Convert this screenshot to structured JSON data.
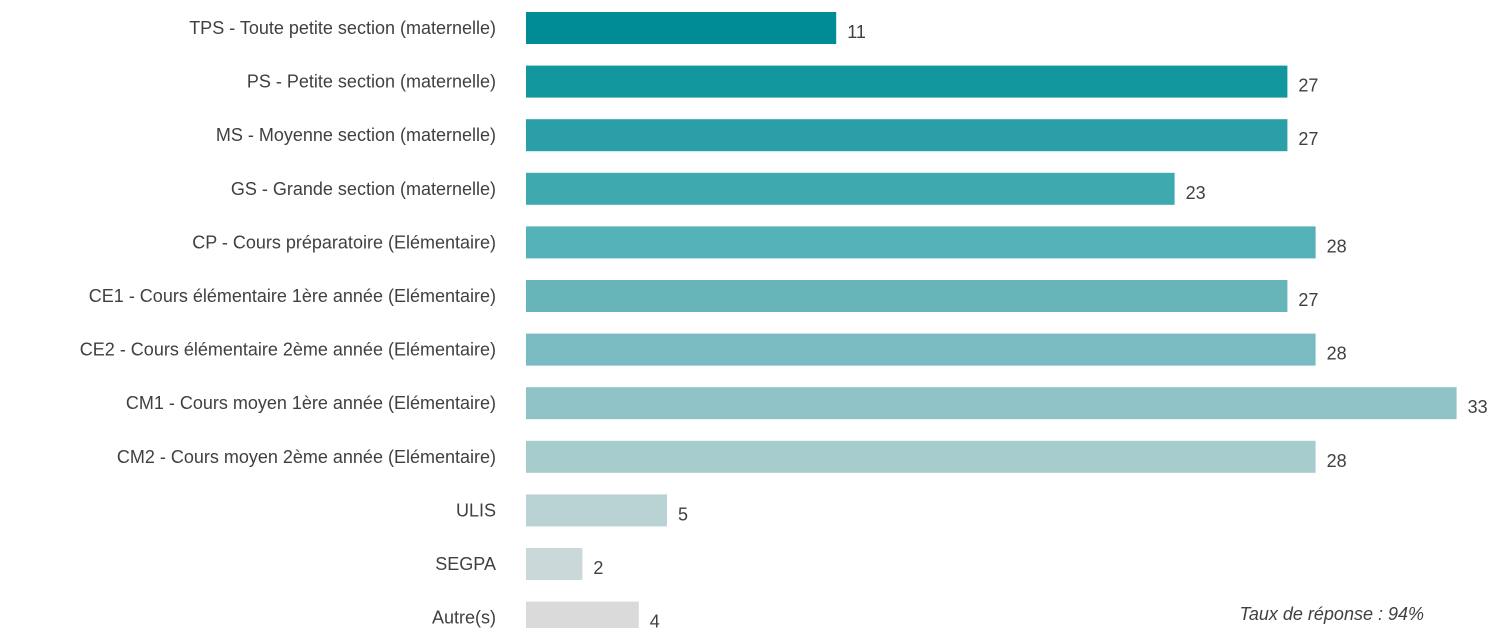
{
  "chart_data": {
    "type": "bar",
    "orientation": "horizontal",
    "categories": [
      "TPS - Toute petite section (maternelle)",
      "PS - Petite section (maternelle)",
      "MS - Moyenne section (maternelle)",
      "GS - Grande section (maternelle)",
      "CP - Cours préparatoire (Elémentaire)",
      "CE1 - Cours élémentaire 1ère année (Elémentaire)",
      "CE2 - Cours élémentaire 2ème année (Elémentaire)",
      "CM1 - Cours moyen 1ère année (Elémentaire)",
      "CM2 - Cours moyen 2ème année (Elémentaire)",
      "ULIS",
      "SEGPA",
      "Autre(s)"
    ],
    "values": [
      11,
      27,
      27,
      23,
      28,
      27,
      28,
      33,
      28,
      5,
      2,
      4
    ],
    "colors": [
      "#008c96",
      "#13979f",
      "#2a9fa8",
      "#3fa9b0",
      "#55b1b8",
      "#68b5b9",
      "#7abbc2",
      "#90c3c7",
      "#a6cccd",
      "#b9d3d4",
      "#cbd8d9",
      "#dadada"
    ],
    "xlim": [
      0,
      33
    ],
    "grid": false,
    "legend": "none",
    "annotation": "Taux de réponse : 94%"
  }
}
